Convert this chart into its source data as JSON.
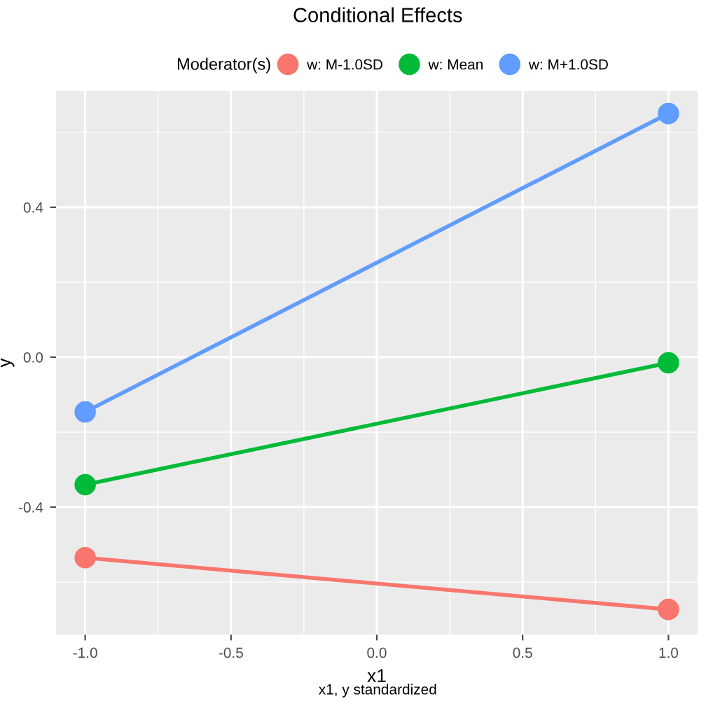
{
  "chart_data": {
    "type": "line",
    "title": "Conditional Effects",
    "xlabel": "x1",
    "ylabel": "y",
    "legend_title": "Moderator(s)",
    "annotations": [
      "x1, y standardized"
    ],
    "x": [
      -1.0,
      1.0
    ],
    "series": [
      {
        "name": "w: M-1.0SD",
        "color": "#f8766d",
        "values": [
          -0.535,
          -0.673
        ]
      },
      {
        "name": "w: Mean",
        "color": "#00ba38",
        "values": [
          -0.34,
          -0.015
        ]
      },
      {
        "name": "w: M+1.0SD",
        "color": "#619cff",
        "values": [
          -0.146,
          0.65
        ]
      }
    ],
    "xlim": [
      -1.1,
      1.1
    ],
    "xticks": [
      {
        "value": -1.0,
        "label": "-1.0"
      },
      {
        "value": -0.5,
        "label": "-0.5"
      },
      {
        "value": 0.0,
        "label": "0.0"
      },
      {
        "value": 0.5,
        "label": "0.5"
      },
      {
        "value": 1.0,
        "label": "1.0"
      }
    ],
    "ylim": [
      -0.74,
      0.71
    ],
    "yticks": [
      {
        "value": -0.4,
        "label": "-0.4"
      },
      {
        "value": 0.0,
        "label": "0.0"
      },
      {
        "value": 0.4,
        "label": "0.4"
      }
    ],
    "grid": true,
    "legend": "top",
    "marker": "circle",
    "line_style": "solid"
  }
}
